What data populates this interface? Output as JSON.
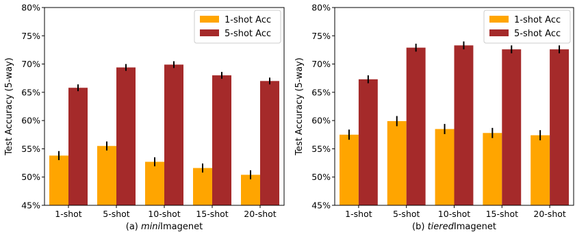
{
  "colors": {
    "one_shot": "#FFA500",
    "five_shot": "#A52A2A",
    "error": "#000000"
  },
  "chart_data": [
    {
      "type": "bar",
      "caption_prefix": "(a) ",
      "caption_italic": "mini",
      "caption_suffix": "Imagenet",
      "ylabel": "Test Accuracy (5-way)",
      "xlabel": "",
      "ylim": [
        45,
        80
      ],
      "yticks": [
        "45%",
        "50%",
        "55%",
        "60%",
        "65%",
        "70%",
        "75%",
        "80%"
      ],
      "ytick_values": [
        45,
        50,
        55,
        60,
        65,
        70,
        75,
        80
      ],
      "categories": [
        "1-shot",
        "5-shot",
        "10-shot",
        "15-shot",
        "20-shot"
      ],
      "legend_position": "top-right",
      "grid": false,
      "series": [
        {
          "name": "1-shot Acc",
          "values": [
            53.8,
            55.5,
            52.7,
            51.6,
            50.4
          ],
          "errors": [
            0.8,
            0.8,
            0.8,
            0.8,
            0.8
          ]
        },
        {
          "name": "5-shot Acc",
          "values": [
            65.8,
            69.4,
            69.9,
            68.0,
            67.0
          ],
          "errors": [
            0.6,
            0.6,
            0.6,
            0.6,
            0.6
          ]
        }
      ]
    },
    {
      "type": "bar",
      "caption_prefix": "(b) ",
      "caption_italic": "tiered",
      "caption_suffix": "Imagenet",
      "ylabel": "Test Accuracy (5-way)",
      "xlabel": "",
      "ylim": [
        45,
        80
      ],
      "yticks": [
        "45%",
        "50%",
        "55%",
        "60%",
        "65%",
        "70%",
        "75%",
        "80%"
      ],
      "ytick_values": [
        45,
        50,
        55,
        60,
        65,
        70,
        75,
        80
      ],
      "categories": [
        "1-shot",
        "5-shot",
        "10-shot",
        "15-shot",
        "20-shot"
      ],
      "legend_position": "top-right",
      "grid": false,
      "series": [
        {
          "name": "1-shot Acc",
          "values": [
            57.5,
            59.9,
            58.5,
            57.8,
            57.4
          ],
          "errors": [
            0.9,
            0.9,
            0.9,
            0.9,
            0.9
          ]
        },
        {
          "name": "5-shot Acc",
          "values": [
            67.3,
            72.9,
            73.3,
            72.6,
            72.6
          ],
          "errors": [
            0.7,
            0.7,
            0.7,
            0.7,
            0.7
          ]
        }
      ]
    }
  ]
}
